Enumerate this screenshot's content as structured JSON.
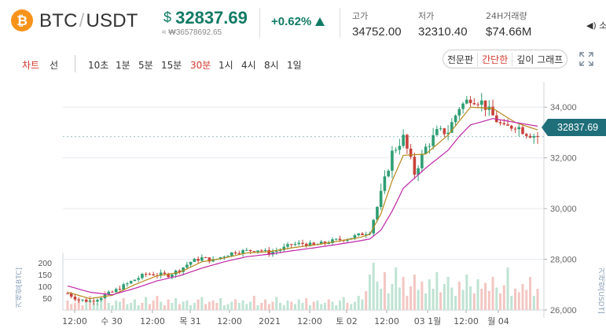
{
  "market": {
    "coin_icon": "bitcoin-icon",
    "base": "BTC",
    "quote": "USDT",
    "currency_symbol": "$",
    "price": "32837.69",
    "krw_price": "≈ ₩36578692.65",
    "change": "+0.62%",
    "high_label": "고가",
    "high_value": "34752.00",
    "low_label": "저가",
    "low_value": "32310.40",
    "volume_label": "24H거래량",
    "volume_value": "$74.66M",
    "sound_label": "◀) 소"
  },
  "toolbar": {
    "chart_tab": "차트",
    "line_tab": "선",
    "intervals": [
      "10초",
      "1분",
      "5분",
      "15분",
      "30분",
      "1시",
      "4시",
      "8시",
      "1일"
    ],
    "active_interval": "30분",
    "views": [
      "전문판",
      "간단한",
      "깊이 그래프"
    ],
    "active_view": "간단한"
  },
  "colors": {
    "up": "#2f9e73",
    "down": "#c8423a",
    "ma_short": "#b8871c",
    "ma_long": "#c026a8",
    "accent": "#117a65",
    "price_tag_bg": "#1f6f7a"
  },
  "chart_data": {
    "type": "candlestick",
    "current_price_tag": "32837.69",
    "y_ticks": [
      "34,000",
      "32,000",
      "30,000",
      "28,000",
      "26,000"
    ],
    "y_tick_values": [
      34000,
      32000,
      30000,
      28000,
      26000
    ],
    "ylim": [
      26000,
      35000
    ],
    "x_ticks": [
      "12:00",
      "수 30",
      "12:00",
      "목 31",
      "12:00",
      "2021",
      "12:00",
      "토 02",
      "12:00",
      "03 1월",
      "12:00",
      "월 04"
    ],
    "volume_ticks": [
      "200",
      "150",
      "100",
      "50"
    ],
    "volume_tick_values": [
      200,
      150,
      100,
      50
    ],
    "volume_label": "거래량[BTC]",
    "volume_label_right": "거래량[USDT]",
    "price_path": [
      [
        0,
        26650
      ],
      [
        3,
        26400
      ],
      [
        6,
        26350
      ],
      [
        9,
        26520
      ],
      [
        12,
        26700
      ],
      [
        15,
        26950
      ],
      [
        18,
        27200
      ],
      [
        21,
        27420
      ],
      [
        24,
        27400
      ],
      [
        27,
        27380
      ],
      [
        30,
        27580
      ],
      [
        33,
        27900
      ],
      [
        36,
        28050
      ],
      [
        39,
        27950
      ],
      [
        42,
        28150
      ],
      [
        45,
        28300
      ],
      [
        48,
        28330
      ],
      [
        51,
        28380
      ],
      [
        54,
        28250
      ],
      [
        57,
        28380
      ],
      [
        60,
        28580
      ],
      [
        63,
        28620
      ],
      [
        66,
        28550
      ],
      [
        69,
        28650
      ],
      [
        72,
        28750
      ],
      [
        75,
        28820
      ],
      [
        78,
        28950
      ],
      [
        81,
        29100
      ],
      [
        84,
        30550
      ],
      [
        87,
        32200
      ],
      [
        90,
        32800
      ],
      [
        93,
        31400
      ],
      [
        96,
        32400
      ],
      [
        99,
        33000
      ],
      [
        102,
        33050
      ],
      [
        105,
        34000
      ],
      [
        108,
        34350
      ],
      [
        111,
        34200
      ],
      [
        114,
        33650
      ],
      [
        117,
        33150
      ],
      [
        120,
        33300
      ],
      [
        123,
        33000
      ],
      [
        126,
        32840
      ]
    ],
    "ma_short_path": [
      [
        0,
        26700
      ],
      [
        6,
        26450
      ],
      [
        12,
        26580
      ],
      [
        18,
        27000
      ],
      [
        24,
        27350
      ],
      [
        30,
        27480
      ],
      [
        36,
        27900
      ],
      [
        42,
        28050
      ],
      [
        48,
        28250
      ],
      [
        54,
        28300
      ],
      [
        60,
        28450
      ],
      [
        66,
        28560
      ],
      [
        72,
        28700
      ],
      [
        78,
        28850
      ],
      [
        81,
        28980
      ],
      [
        84,
        29800
      ],
      [
        87,
        31100
      ],
      [
        90,
        32100
      ],
      [
        96,
        32150
      ],
      [
        102,
        32900
      ],
      [
        105,
        33450
      ],
      [
        108,
        34000
      ],
      [
        114,
        33950
      ],
      [
        120,
        33400
      ],
      [
        126,
        33100
      ]
    ],
    "ma_long_path": [
      [
        0,
        26950
      ],
      [
        6,
        26700
      ],
      [
        12,
        26600
      ],
      [
        18,
        26850
      ],
      [
        24,
        27150
      ],
      [
        30,
        27350
      ],
      [
        36,
        27650
      ],
      [
        42,
        27900
      ],
      [
        48,
        28100
      ],
      [
        54,
        28200
      ],
      [
        60,
        28330
      ],
      [
        66,
        28450
      ],
      [
        72,
        28580
      ],
      [
        78,
        28720
      ],
      [
        81,
        28800
      ],
      [
        84,
        29150
      ],
      [
        87,
        29900
      ],
      [
        90,
        30800
      ],
      [
        96,
        31600
      ],
      [
        102,
        32300
      ],
      [
        105,
        32850
      ],
      [
        108,
        33300
      ],
      [
        114,
        33550
      ],
      [
        120,
        33400
      ],
      [
        126,
        33250
      ]
    ],
    "volume_bars": [
      40,
      25,
      30,
      55,
      20,
      35,
      60,
      30,
      25,
      45,
      80,
      30,
      20,
      40,
      35,
      50,
      25,
      30,
      45,
      20,
      30,
      55,
      25,
      40,
      60,
      35,
      20,
      45,
      30,
      50,
      25,
      35,
      40,
      20,
      30,
      45,
      55,
      25,
      35,
      40,
      30,
      50,
      20,
      25,
      35,
      45,
      30,
      40,
      25,
      35,
      60,
      20,
      30,
      45,
      25,
      35,
      55,
      30,
      20,
      40,
      35,
      25,
      45,
      30,
      50,
      20,
      35,
      40,
      25,
      30,
      45,
      35,
      20,
      40,
      55,
      30,
      25,
      35,
      60,
      45,
      80,
      150,
      200,
      120,
      90,
      160,
      70,
      110,
      180,
      95,
      140,
      60,
      100,
      150,
      85,
      120,
      70,
      130,
      90,
      160,
      75,
      110,
      140,
      95,
      60,
      120,
      85,
      150,
      100,
      70,
      130,
      90,
      115,
      80,
      140,
      95,
      70,
      105,
      180,
      60,
      90,
      75,
      110,
      85,
      140,
      60,
      90
    ]
  }
}
